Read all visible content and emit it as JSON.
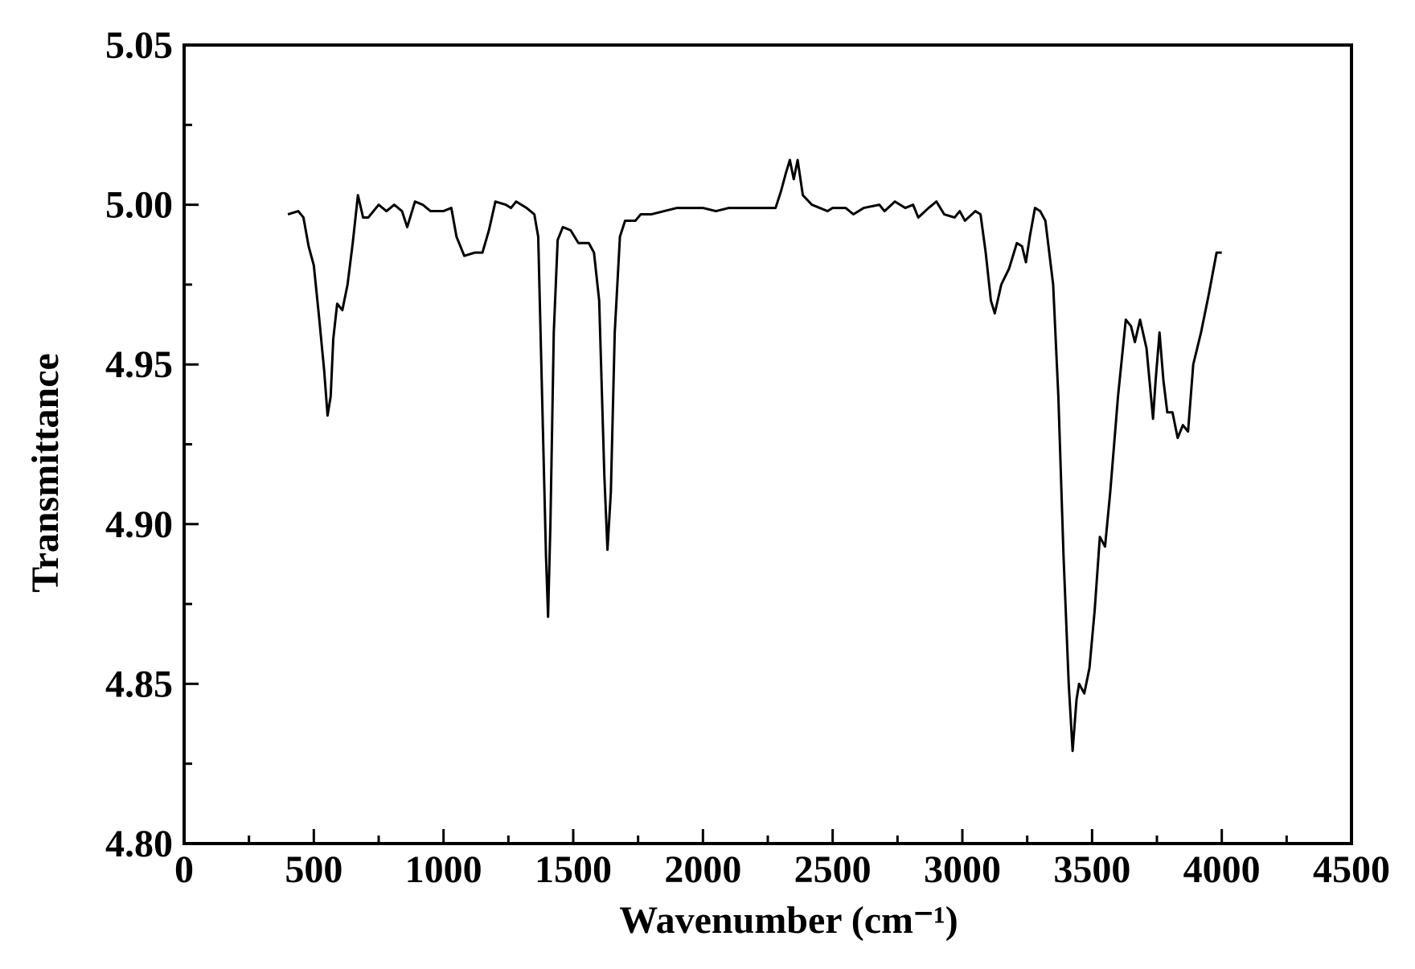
{
  "chart_data": {
    "type": "line",
    "xlabel": "Wavenumber (cm⁻¹)",
    "ylabel": "Transmittance",
    "color": "#000000",
    "xlim": [
      0,
      4500
    ],
    "xticks": [
      0,
      500,
      1000,
      1500,
      2000,
      2500,
      3000,
      3500,
      4000,
      4500
    ],
    "ylim": [
      4.8,
      5.05
    ],
    "yticks": [
      {
        "value": 4.8,
        "label": "4.80"
      },
      4.85,
      {
        "value": 4.9,
        "label": "4.90"
      },
      4.95,
      {
        "value": 5.0,
        "label": "5.00"
      },
      5.05
    ],
    "x": [
      400,
      440,
      460,
      480,
      500,
      520,
      540,
      553,
      565,
      575,
      590,
      610,
      630,
      650,
      670,
      690,
      710,
      750,
      780,
      810,
      840,
      860,
      890,
      920,
      950,
      1000,
      1030,
      1050,
      1080,
      1120,
      1150,
      1175,
      1200,
      1240,
      1260,
      1280,
      1320,
      1350,
      1365,
      1380,
      1395,
      1403,
      1412,
      1425,
      1440,
      1460,
      1490,
      1520,
      1560,
      1580,
      1600,
      1620,
      1632,
      1645,
      1660,
      1680,
      1700,
      1740,
      1760,
      1800,
      1850,
      1900,
      1950,
      2000,
      2050,
      2100,
      2150,
      2200,
      2280,
      2300,
      2320,
      2335,
      2350,
      2365,
      2385,
      2420,
      2450,
      2480,
      2500,
      2550,
      2580,
      2620,
      2680,
      2700,
      2740,
      2780,
      2810,
      2830,
      2870,
      2900,
      2930,
      2970,
      2990,
      3010,
      3050,
      3070,
      3090,
      3110,
      3125,
      3150,
      3180,
      3210,
      3230,
      3245,
      3260,
      3280,
      3300,
      3320,
      3350,
      3370,
      3390,
      3410,
      3425,
      3440,
      3450,
      3470,
      3490,
      3510,
      3530,
      3550,
      3570,
      3600,
      3630,
      3650,
      3665,
      3685,
      3710,
      3735,
      3745,
      3760,
      3775,
      3790,
      3810,
      3830,
      3850,
      3870,
      3890,
      3920,
      3950,
      3980,
      4000
    ],
    "values": [
      4.997,
      4.998,
      4.996,
      4.987,
      4.981,
      4.965,
      4.948,
      4.934,
      4.94,
      4.958,
      4.969,
      4.967,
      4.975,
      4.988,
      5.003,
      4.996,
      4.996,
      5.0,
      4.998,
      5.0,
      4.998,
      4.993,
      5.001,
      5.0,
      4.998,
      4.998,
      4.999,
      4.99,
      4.984,
      4.985,
      4.985,
      4.992,
      5.001,
      5.0,
      4.999,
      5.001,
      4.999,
      4.997,
      4.99,
      4.94,
      4.89,
      4.871,
      4.9,
      4.96,
      4.989,
      4.993,
      4.992,
      4.988,
      4.988,
      4.985,
      4.97,
      4.915,
      4.892,
      4.91,
      4.96,
      4.99,
      4.995,
      4.995,
      4.997,
      4.997,
      4.998,
      4.999,
      4.999,
      4.999,
      4.998,
      4.999,
      4.999,
      4.999,
      4.999,
      5.004,
      5.01,
      5.014,
      5.008,
      5.014,
      5.003,
      5.0,
      4.999,
      4.998,
      4.999,
      4.999,
      4.997,
      4.999,
      5.0,
      4.998,
      5.001,
      4.999,
      5.0,
      4.996,
      4.999,
      5.001,
      4.997,
      4.996,
      4.998,
      4.995,
      4.998,
      4.997,
      4.985,
      4.97,
      4.966,
      4.975,
      4.98,
      4.988,
      4.987,
      4.982,
      4.99,
      4.999,
      4.998,
      4.995,
      4.975,
      4.94,
      4.89,
      4.85,
      4.829,
      4.845,
      4.85,
      4.847,
      4.855,
      4.873,
      4.896,
      4.893,
      4.91,
      4.94,
      4.964,
      4.962,
      4.957,
      4.964,
      4.955,
      4.933,
      4.945,
      4.96,
      4.945,
      4.935,
      4.935,
      4.927,
      4.931,
      4.929,
      4.95,
      4.96,
      4.972,
      4.985,
      4.985
    ]
  }
}
